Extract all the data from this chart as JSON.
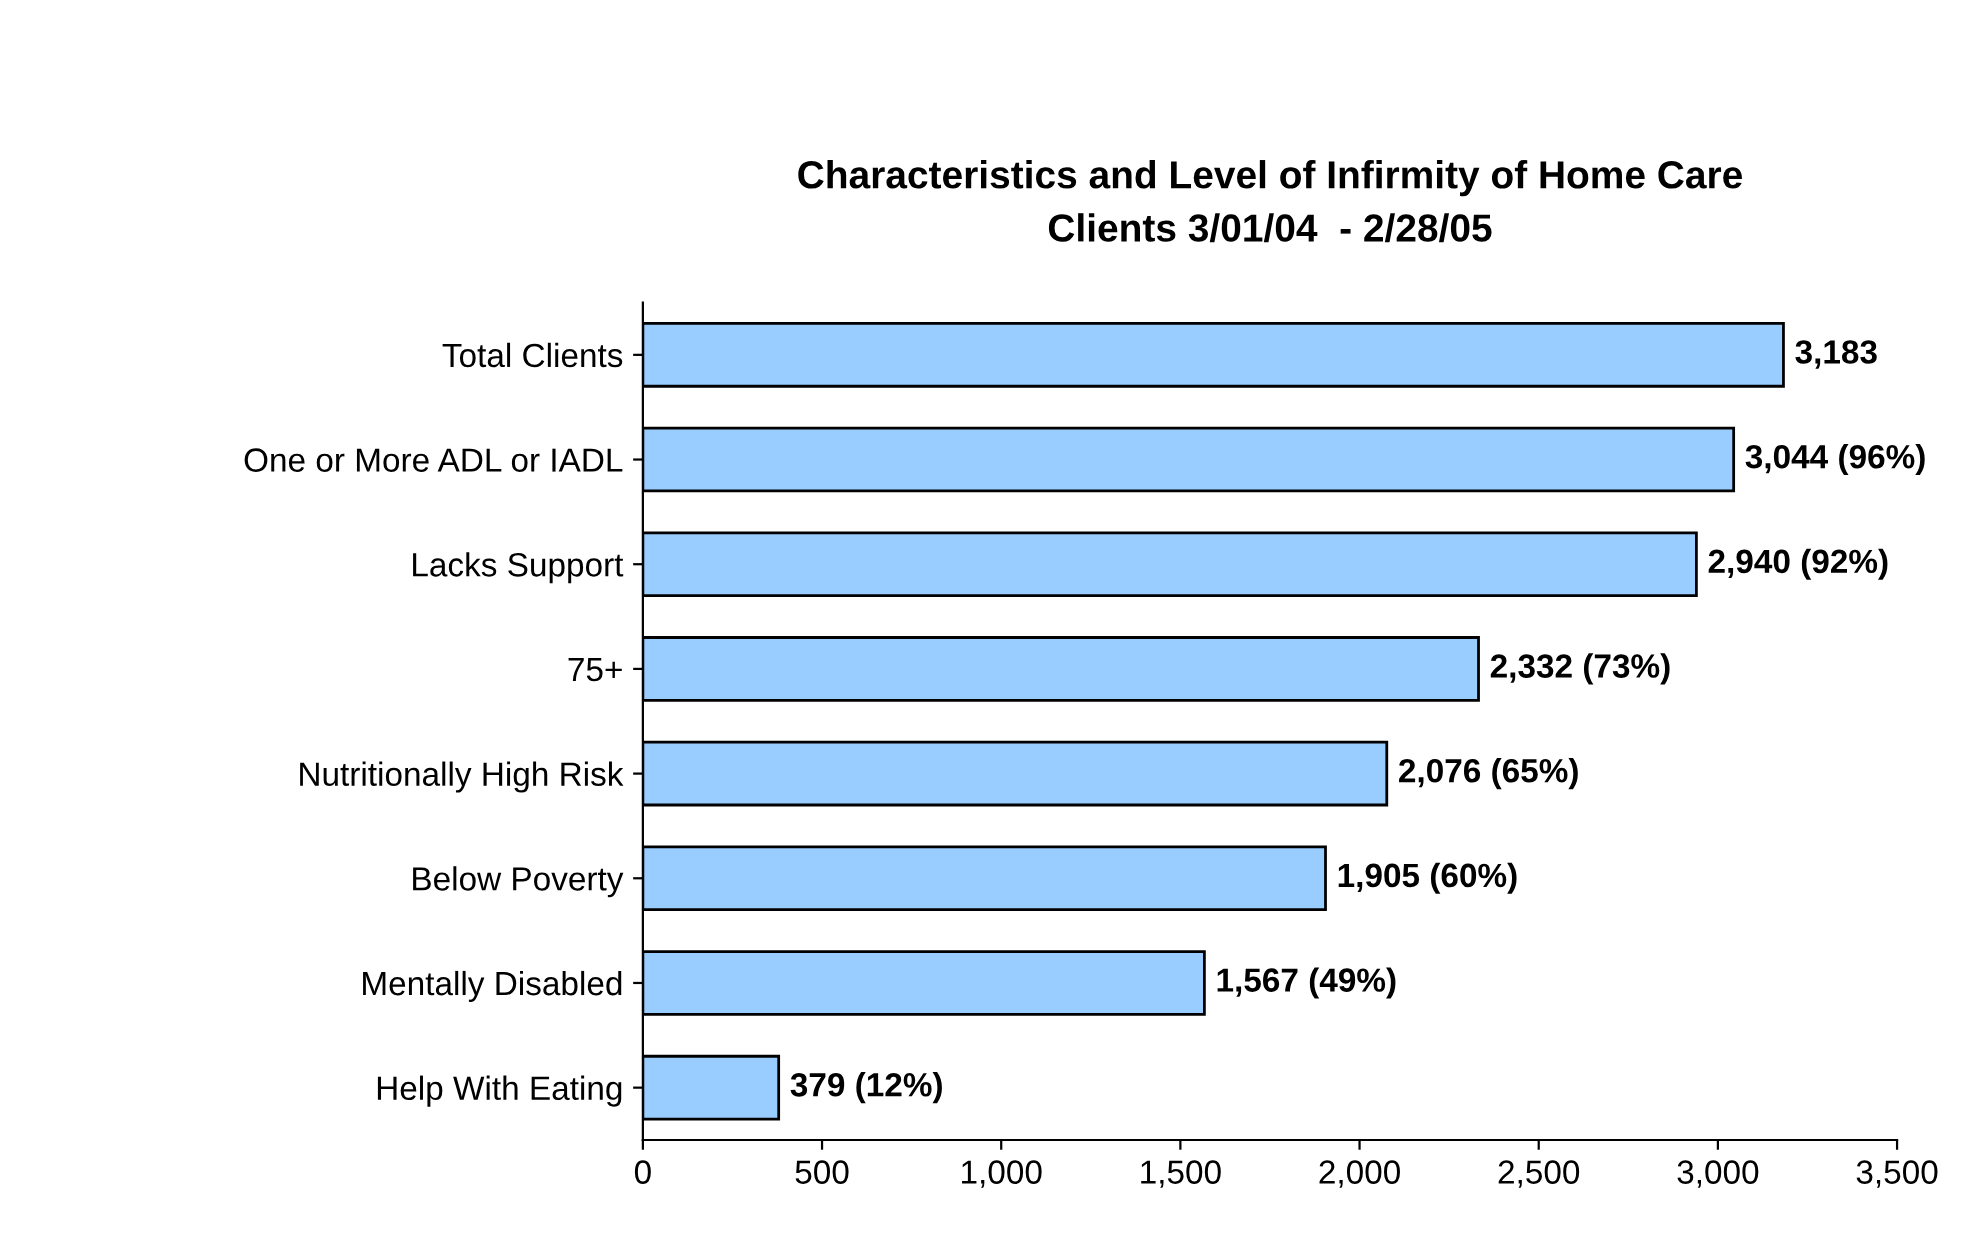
{
  "chart_data": {
    "type": "bar",
    "orientation": "horizontal",
    "title": "Characteristics and Level of Infirmity of Home Care\nClients 3/01/04  - 2/28/05",
    "categories": [
      "Total Clients",
      "One or More ADL or IADL",
      "Lacks Support",
      "75+",
      "Nutritionally High Risk",
      "Below Poverty",
      "Mentally Disabled",
      "Help With Eating"
    ],
    "values": [
      3183,
      3044,
      2940,
      2332,
      2076,
      1905,
      1567,
      379
    ],
    "value_labels": [
      "3,183",
      "3,044 (96%)",
      "2,940 (92%)",
      "2,332 (73%)",
      "2,076 (65%)",
      "1,905 (60%)",
      "1,567 (49%)",
      "379 (12%)"
    ],
    "color": "#99ccff",
    "xlim": [
      0,
      3500
    ],
    "xticks": [
      0,
      500,
      {
        "value": 1000,
        "label": "1,000"
      },
      {
        "value": 1500,
        "label": "1,500"
      },
      {
        "value": 2000,
        "label": "2,000"
      },
      {
        "value": 2500,
        "label": "2,500"
      },
      {
        "value": 3000,
        "label": "3,000"
      },
      {
        "value": 3500,
        "label": "3,500"
      }
    ],
    "grid": false,
    "legend": false
  }
}
